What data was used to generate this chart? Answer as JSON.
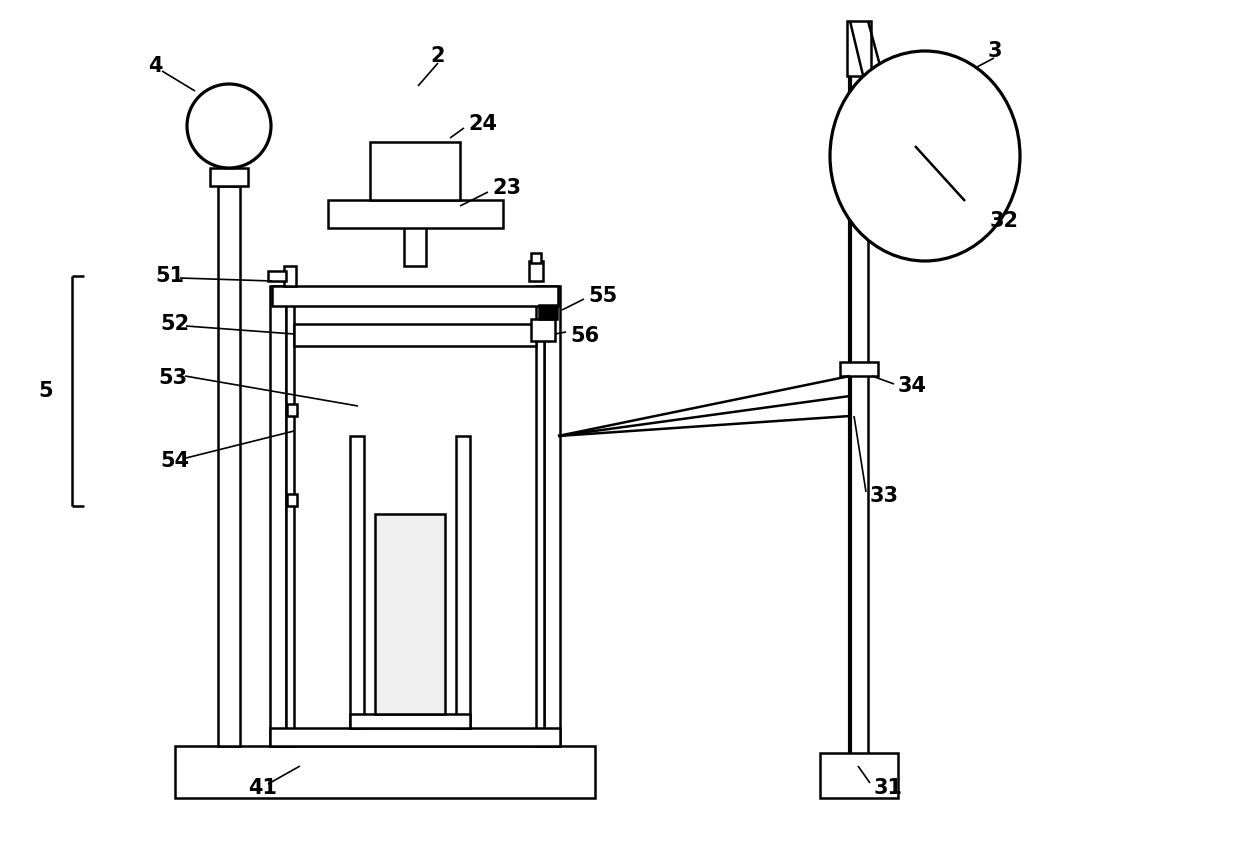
{
  "bg_color": "#ffffff",
  "line_color": "#000000",
  "lw": 1.8,
  "lw_thick": 3.0,
  "lw_thin": 1.2,
  "font_size": 15,
  "font_weight": "bold",
  "fig_w": 12.4,
  "fig_h": 8.66,
  "dpi": 100
}
